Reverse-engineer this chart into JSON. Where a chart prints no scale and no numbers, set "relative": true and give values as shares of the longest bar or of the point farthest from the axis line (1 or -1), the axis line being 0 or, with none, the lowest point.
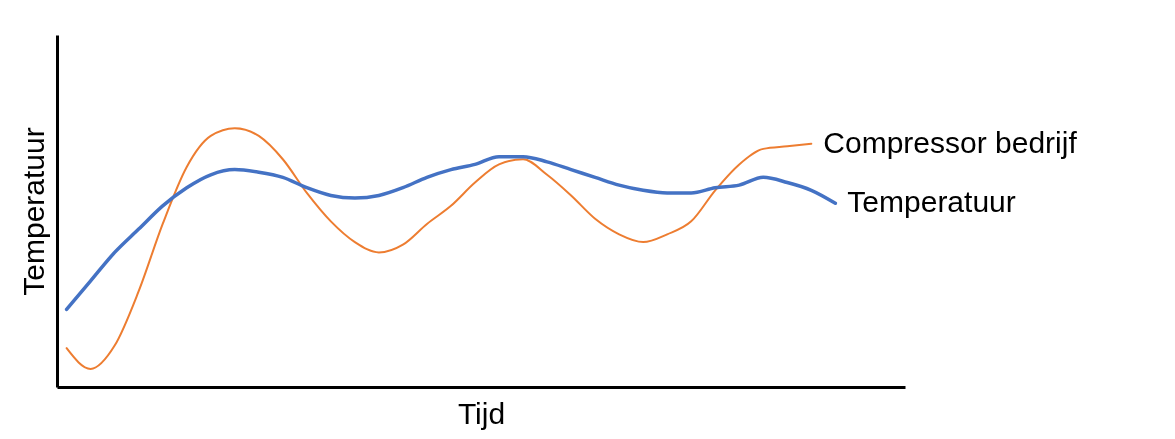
{
  "chart_data": {
    "type": "line",
    "relative": true,
    "xlabel": "Tijd",
    "ylabel": "Temperatuur",
    "categories": [
      null,
      null,
      null,
      null,
      null,
      null,
      null,
      null,
      null,
      null,
      null,
      null,
      null,
      null,
      null,
      null,
      null,
      null,
      null,
      null,
      null,
      null,
      null,
      null,
      null,
      null,
      null,
      null,
      null,
      null,
      null,
      null,
      null
    ],
    "series": [
      {
        "name": "Compressor bedrijf",
        "color": "#ed7d31",
        "values": [
          0.15,
          0.07,
          0.16,
          0.37,
          0.63,
          0.85,
          0.97,
          1,
          0.97,
          0.88,
          0.75,
          0.64,
          0.56,
          0.52,
          0.55,
          0.63,
          0.7,
          0.79,
          0.86,
          0.88,
          0.82,
          0.74,
          0.65,
          0.59,
          0.56,
          0.59,
          0.64,
          0.76,
          0.86,
          0.92,
          0.93,
          0.94,
          null
        ]
      },
      {
        "name": "Temperatuur",
        "color": "#4472c4",
        "values": [
          0.3,
          0.41,
          0.52,
          0.61,
          0.7,
          0.77,
          0.82,
          0.84,
          0.83,
          0.81,
          0.77,
          0.74,
          0.73,
          0.74,
          0.77,
          0.81,
          0.84,
          0.86,
          0.89,
          0.89,
          0.87,
          0.84,
          0.81,
          0.78,
          0.76,
          0.75,
          0.75,
          0.77,
          0.78,
          0.81,
          0.79,
          0.76,
          0.71
        ]
      }
    ]
  }
}
